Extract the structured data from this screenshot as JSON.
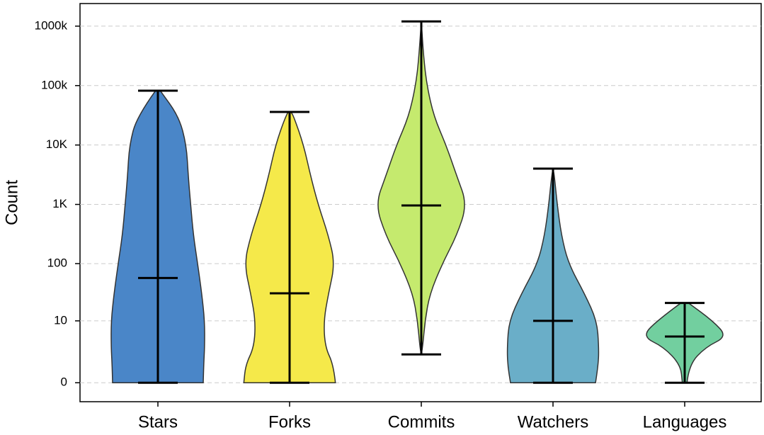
{
  "chart_data": {
    "type": "violin",
    "y_label": "Count",
    "yscale": "log1p",
    "grid": true,
    "categories": [
      "Stars",
      "Forks",
      "Commits",
      "Watchers",
      "Languages"
    ],
    "ylim": [
      -0.52,
      2400000
    ],
    "yticks": [
      0,
      10,
      100,
      {
        "value": 1000,
        "label": "1K"
      },
      {
        "value": 10000,
        "label": "10K"
      },
      {
        "value": 100000,
        "label": "100k"
      },
      {
        "value": 1000000,
        "label": "1000k"
      }
    ],
    "series": [
      {
        "color": "#4a86c8",
        "min": 0,
        "median": 57,
        "max": 82000,
        "density_y": [
          0,
          1,
          3,
          10,
          30,
          100,
          300,
          1000,
          3000,
          10000,
          30000,
          82000
        ],
        "density_width": [
          0.97,
          0.98,
          1,
          1,
          0.94,
          0.85,
          0.76,
          0.7,
          0.65,
          0.61,
          0.45,
          0.05
        ]
      },
      {
        "color": "#f5e94a",
        "min": 0,
        "median": 31,
        "max": 36000,
        "density_y": [
          0,
          1,
          3,
          10,
          30,
          100,
          300,
          1000,
          3000,
          10000,
          30000,
          36000
        ],
        "density_width": [
          0.98,
          0.94,
          0.76,
          0.73,
          0.83,
          0.97,
          0.83,
          0.61,
          0.45,
          0.3,
          0.09,
          0.03
        ]
      },
      {
        "color": "#c5ea6e",
        "min": 2,
        "median": 960,
        "max": 1200000,
        "density_y": [
          2,
          3,
          10,
          30,
          100,
          300,
          1000,
          3000,
          10000,
          30000,
          100000,
          300000,
          1200000
        ],
        "density_width": [
          0,
          0.03,
          0.08,
          0.18,
          0.45,
          0.76,
          0.98,
          0.76,
          0.53,
          0.27,
          0.12,
          0.05,
          0
        ]
      },
      {
        "color": "#6aaec8",
        "min": 0,
        "median": 10,
        "max": 4000,
        "density_y": [
          0,
          1,
          3,
          10,
          30,
          100,
          300,
          1000,
          3000,
          4000
        ],
        "density_width": [
          0.91,
          0.97,
          0.98,
          0.94,
          0.68,
          0.33,
          0.18,
          0.09,
          0.03,
          0
        ]
      },
      {
        "color": "#72cf9f",
        "min": 0,
        "median": 5,
        "max": 21,
        "density_y": [
          0,
          1,
          3,
          5,
          10,
          21
        ],
        "density_width": [
          0.05,
          0.09,
          0.45,
          0.91,
          0.6,
          0.08
        ]
      }
    ]
  }
}
